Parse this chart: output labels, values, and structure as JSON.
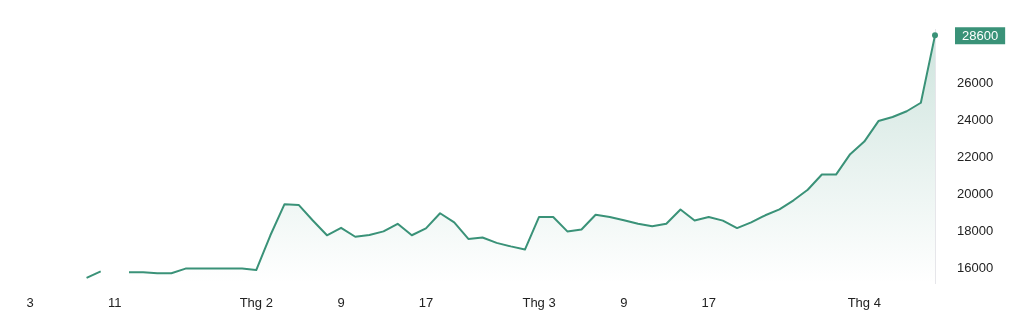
{
  "chart_data": {
    "type": "area",
    "categories": [
      "3",
      null,
      null,
      null,
      null,
      null,
      "11",
      null,
      null,
      null,
      null,
      null,
      null,
      null,
      null,
      null,
      "Thg 2",
      null,
      null,
      null,
      null,
      null,
      "9",
      null,
      null,
      null,
      null,
      null,
      "17",
      null,
      null,
      null,
      null,
      null,
      null,
      null,
      "Thg 3",
      null,
      null,
      null,
      null,
      null,
      "9",
      null,
      null,
      null,
      null,
      null,
      "17",
      null,
      null,
      null,
      null,
      null,
      null,
      null,
      null,
      null,
      null,
      "Thg 4",
      null,
      null,
      null,
      null,
      null
    ],
    "series": [
      {
        "color": "#3a9278",
        "values": [
          null,
          null,
          null,
          null,
          15500,
          15850,
          null,
          15800,
          15800,
          15750,
          15750,
          16000,
          16000,
          16000,
          16000,
          16000,
          15920,
          17800,
          19480,
          19440,
          18600,
          17800,
          18200,
          17720,
          17810,
          18010,
          18420,
          17800,
          18170,
          18990,
          18500,
          17600,
          17680,
          17390,
          17200,
          17030,
          18790,
          18790,
          18010,
          18110,
          18910,
          18790,
          18610,
          18420,
          18290,
          18420,
          19190,
          18600,
          18790,
          18590,
          18190,
          18500,
          18880,
          19200,
          19690,
          20260,
          21080,
          21080,
          22180,
          22860,
          23970,
          24190,
          24500,
          24960,
          28600
        ]
      }
    ],
    "ylim": [
      15200,
      28900
    ],
    "yticks": [
      16000,
      18000,
      20000,
      22000,
      24000,
      26000
    ],
    "grid": false,
    "legend": false,
    "marker": "none",
    "annotations": [
      "28600"
    ]
  }
}
